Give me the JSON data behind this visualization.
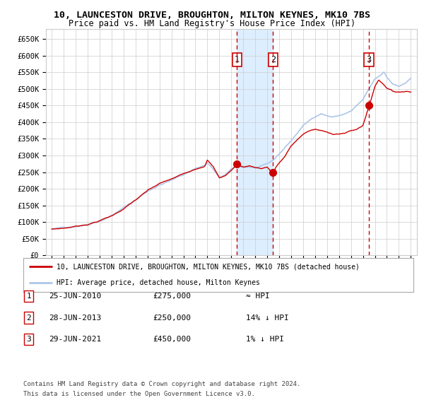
{
  "title": "10, LAUNCESTON DRIVE, BROUGHTON, MILTON KEYNES, MK10 7BS",
  "subtitle": "Price paid vs. HM Land Registry's House Price Index (HPI)",
  "ylim": [
    0,
    680000
  ],
  "yticks": [
    0,
    50000,
    100000,
    150000,
    200000,
    250000,
    300000,
    350000,
    400000,
    450000,
    500000,
    550000,
    600000,
    650000
  ],
  "ytick_labels": [
    "£0",
    "£50K",
    "£100K",
    "£150K",
    "£200K",
    "£250K",
    "£300K",
    "£350K",
    "£400K",
    "£450K",
    "£500K",
    "£550K",
    "£600K",
    "£650K"
  ],
  "hpi_color": "#aec6e8",
  "price_color": "#cc0000",
  "vline_color": "#cc0000",
  "shade_color": "#ddeeff",
  "sale_points": [
    {
      "date_num": 2010.48,
      "price": 275000,
      "label": "1"
    },
    {
      "date_num": 2013.49,
      "price": 250000,
      "label": "2"
    },
    {
      "date_num": 2021.49,
      "price": 450000,
      "label": "3"
    }
  ],
  "annotation_box_color": "#cc0000",
  "legend_line1": "10, LAUNCESTON DRIVE, BROUGHTON, MILTON KEYNES, MK10 7BS (detached house)",
  "legend_line2": "HPI: Average price, detached house, Milton Keynes",
  "table_rows": [
    {
      "num": "1",
      "date": "25-JUN-2010",
      "price": "£275,000",
      "vs_hpi": "≈ HPI"
    },
    {
      "num": "2",
      "date": "28-JUN-2013",
      "price": "£250,000",
      "vs_hpi": "14% ↓ HPI"
    },
    {
      "num": "3",
      "date": "29-JUN-2021",
      "price": "£450,000",
      "vs_hpi": "1% ↓ HPI"
    }
  ],
  "footer": [
    "Contains HM Land Registry data © Crown copyright and database right 2024.",
    "This data is licensed under the Open Government Licence v3.0."
  ],
  "background_color": "#ffffff",
  "grid_color": "#cccccc",
  "xlim_start": 1994.5,
  "xlim_end": 2025.5
}
